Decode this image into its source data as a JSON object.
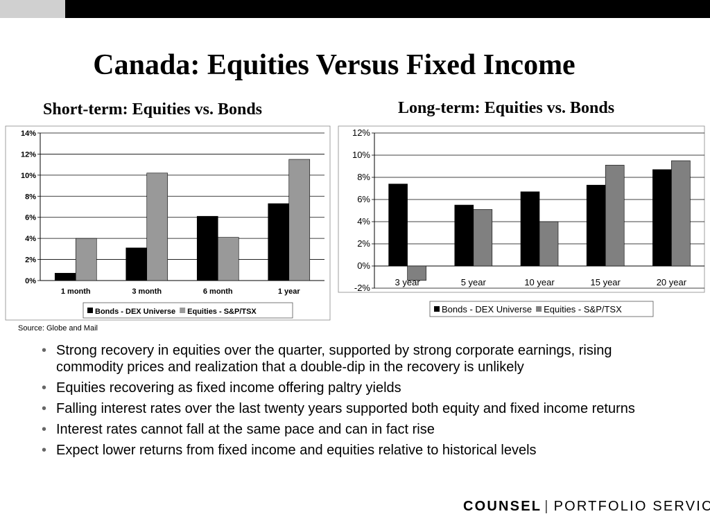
{
  "slide": {
    "title": "Canada: Equities Versus Fixed Income",
    "source": "Source: Globe and Mail",
    "bullets": [
      "Strong recovery in equities over the quarter, supported by strong corporate earnings, rising commodity prices and realization that a double-dip in the recovery is unlikely",
      "Equities recovering as fixed income offering paltry yields",
      "Falling interest rates over the last twenty years supported both equity and fixed income returns",
      "Interest rates cannot fall at the same pace and can in fact rise",
      "Expect lower returns from fixed income and equities relative to historical levels"
    ],
    "bullet_glyph": "•",
    "logo": {
      "brand": "COUNSEL",
      "separator": "|",
      "tagline": "PORTFOLIO SERVICES"
    }
  },
  "chart_data": [
    {
      "type": "bar",
      "title": "Short-term: Equities vs. Bonds",
      "categories": [
        "1 month",
        "3 month",
        "6 month",
        "1 year"
      ],
      "series": [
        {
          "name": "Bonds - DEX Universe",
          "values": [
            0.7,
            3.1,
            6.1,
            7.3
          ],
          "color": "#000000"
        },
        {
          "name": "Equities - S&P/TSX",
          "values": [
            4.0,
            10.2,
            4.1,
            11.5
          ],
          "color": "#999999"
        }
      ],
      "ylim": [
        0,
        14
      ],
      "ytick_step": 2,
      "yticks": [
        "0%",
        "2%",
        "4%",
        "6%",
        "8%",
        "10%",
        "12%",
        "14%"
      ],
      "grid": true,
      "legend": "bottom"
    },
    {
      "type": "bar",
      "title": "Long-term: Equities vs. Bonds",
      "categories": [
        "3 year",
        "5 year",
        "10 year",
        "15 year",
        "20 year"
      ],
      "series": [
        {
          "name": "Bonds - DEX Universe",
          "values": [
            7.4,
            5.5,
            6.7,
            7.3,
            8.7
          ],
          "color": "#000000"
        },
        {
          "name": "Equities - S&P/TSX",
          "values": [
            -1.3,
            5.1,
            4.0,
            9.1,
            9.5
          ],
          "color": "#808080"
        }
      ],
      "ylim": [
        -2,
        12
      ],
      "ytick_step": 2,
      "yticks": [
        "-2%",
        "0%",
        "2%",
        "4%",
        "6%",
        "8%",
        "10%",
        "12%"
      ],
      "grid": true,
      "legend": "bottom"
    }
  ]
}
